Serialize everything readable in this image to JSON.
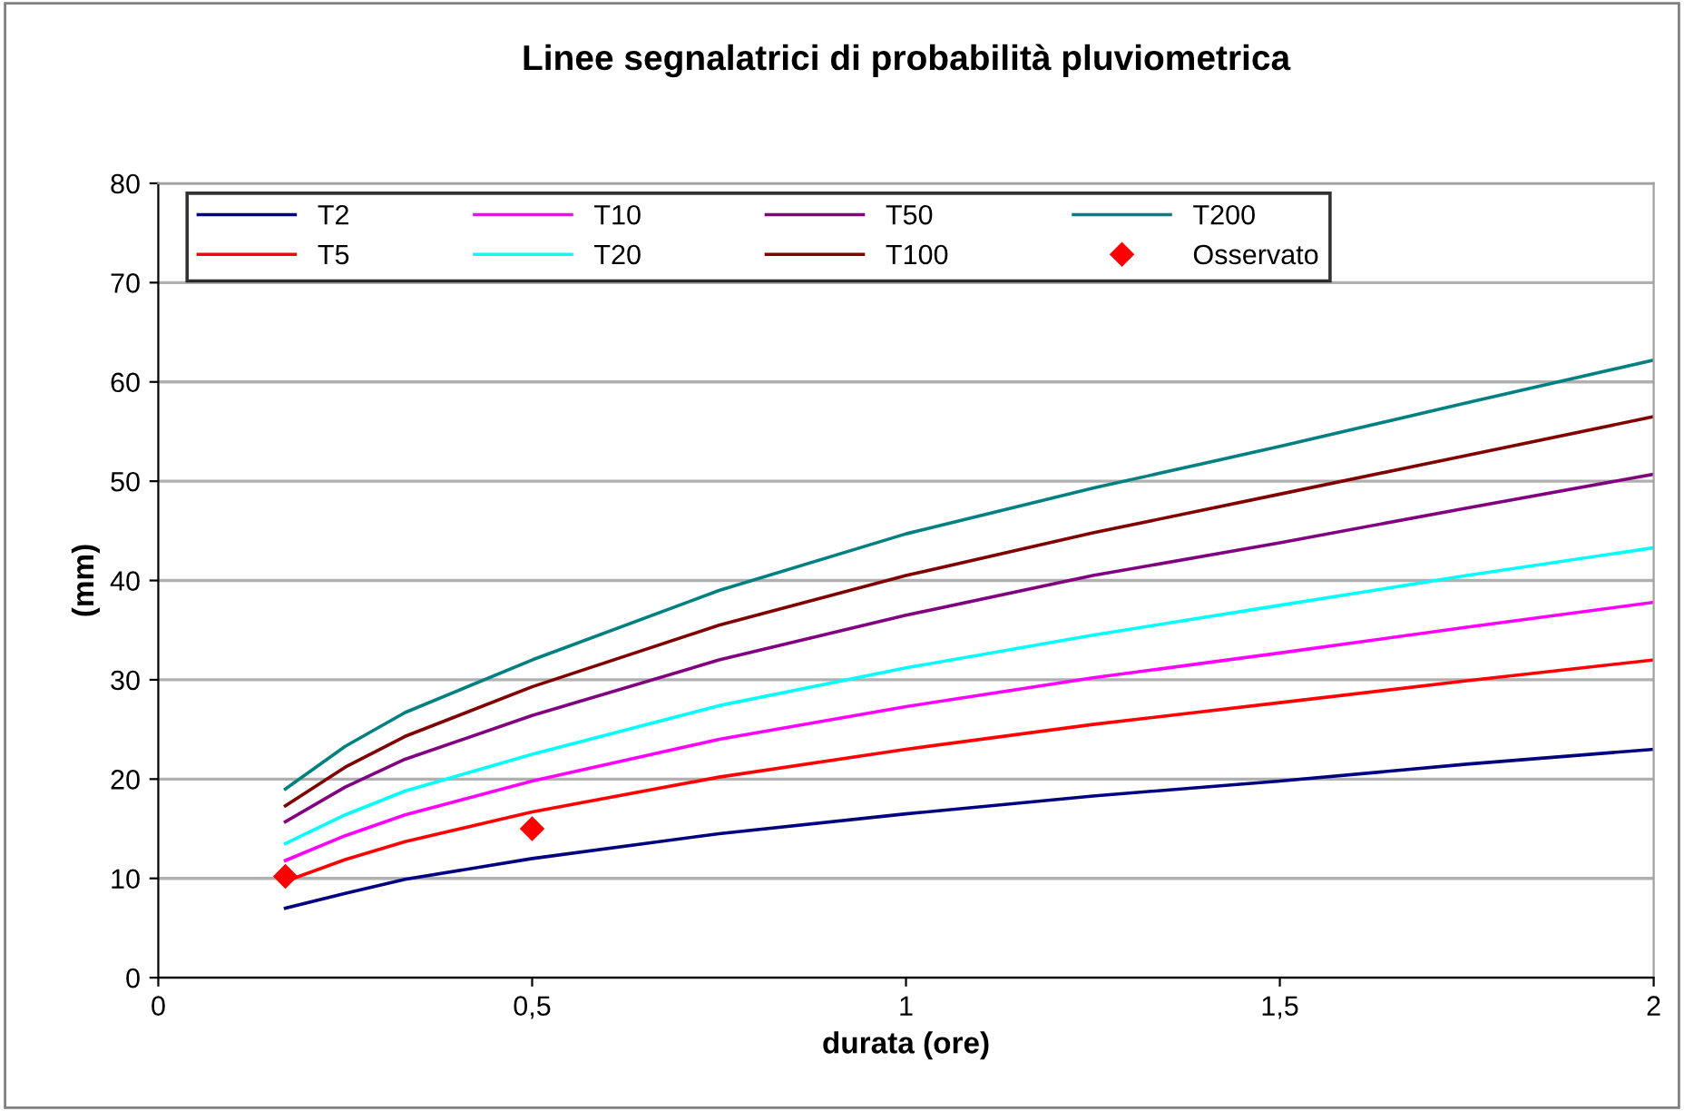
{
  "chart_data": {
    "type": "line",
    "title": "Linee segnalatrici di probabilità pluviometrica",
    "xlabel": "durata (ore)",
    "ylabel": "(mm)",
    "x": [
      0.17,
      0.25,
      0.33,
      0.5,
      0.75,
      1,
      1.25,
      1.5,
      1.75,
      2
    ],
    "xlim": [
      0,
      2
    ],
    "xticks": [
      0,
      {
        "value": 0.5,
        "label": "0,5"
      },
      1,
      {
        "value": 1.5,
        "label": "1,5"
      },
      2
    ],
    "ylim": [
      0,
      80
    ],
    "yticks": [
      0,
      10,
      20,
      30,
      40,
      50,
      60,
      70,
      80
    ],
    "grid": "y",
    "legend": "top",
    "line_style": "solid",
    "marker": "none",
    "series": [
      {
        "name": "T2",
        "color": "#000080",
        "values": [
          7,
          8.5,
          9.9,
          12,
          14.5,
          16.5,
          18.3,
          19.8,
          21.5,
          23
        ]
      },
      {
        "name": "T5",
        "color": "#ff0000",
        "values": [
          9.7,
          11.9,
          13.7,
          16.7,
          20.2,
          23,
          25.5,
          27.7,
          29.9,
          32
        ]
      },
      {
        "name": "T10",
        "color": "#ff00ff",
        "values": [
          11.8,
          14.3,
          16.4,
          19.8,
          24,
          27.3,
          30.2,
          32.7,
          35.3,
          37.8
        ]
      },
      {
        "name": "T20",
        "color": "#00ffff",
        "values": [
          13.5,
          16.4,
          18.8,
          22.5,
          27.4,
          31.2,
          34.5,
          37.5,
          40.5,
          43.3
        ]
      },
      {
        "name": "T50",
        "color": "#800080",
        "values": [
          15.7,
          19.2,
          22,
          26.4,
          32,
          36.5,
          40.5,
          43.8,
          47.3,
          50.7
        ]
      },
      {
        "name": "T100",
        "color": "#800000",
        "values": [
          17.3,
          21.2,
          24.3,
          29.3,
          35.5,
          40.5,
          44.8,
          48.7,
          52.6,
          56.5
        ]
      },
      {
        "name": "T200",
        "color": "#008080",
        "values": [
          19,
          23.3,
          26.7,
          32,
          39,
          44.7,
          49.3,
          53.5,
          57.9,
          62.2
        ]
      },
      {
        "name": "Osservato",
        "type": "scatter",
        "marker": "diamond",
        "color": "#ff0000",
        "x": [
          0.17,
          0.5
        ],
        "values": [
          10.2,
          15
        ]
      }
    ]
  }
}
